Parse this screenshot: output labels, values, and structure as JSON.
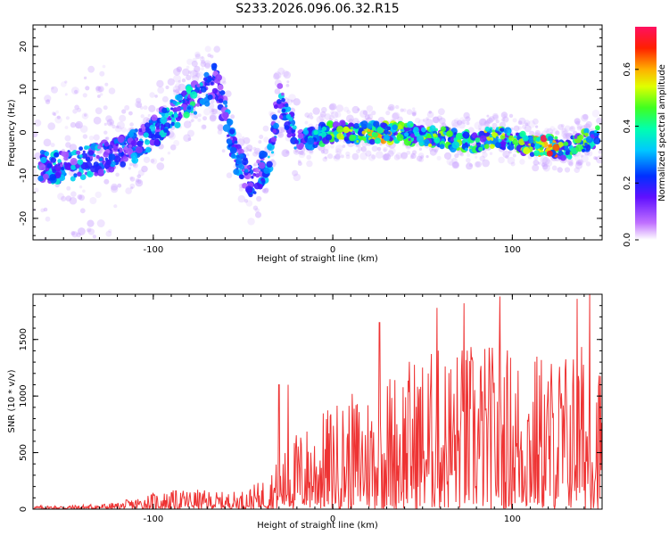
{
  "title": "S233.2026.096.06.32.R15",
  "chart_data": [
    {
      "type": "heatmap",
      "xlabel": "Height of straight line (km)",
      "ylabel": "Frequency (Hz)",
      "xlim": [
        -167,
        150
      ],
      "ylim": [
        -25,
        25
      ],
      "x_ticks": [
        -100,
        0,
        100
      ],
      "y_ticks": [
        -20,
        -10,
        0,
        10,
        20
      ],
      "colorbar": {
        "label": "Normalized spectral amplitude",
        "range": [
          0,
          0.75
        ],
        "ticks": [
          0.0,
          0.2,
          0.4,
          0.6
        ],
        "tick_labels": [
          "0.0",
          "0.2",
          "0.4",
          "0.6"
        ]
      },
      "ridge": [
        {
          "x": -160,
          "y": -8,
          "a": 0.35
        },
        {
          "x": -150,
          "y": -8,
          "a": 0.3
        },
        {
          "x": -140,
          "y": -7,
          "a": 0.3
        },
        {
          "x": -130,
          "y": -6,
          "a": 0.3
        },
        {
          "x": -120,
          "y": -5,
          "a": 0.25
        },
        {
          "x": -110,
          "y": -3,
          "a": 0.3
        },
        {
          "x": -100,
          "y": 0,
          "a": 0.3
        },
        {
          "x": -90,
          "y": 4,
          "a": 0.35
        },
        {
          "x": -80,
          "y": 7,
          "a": 0.4
        },
        {
          "x": -70,
          "y": 10,
          "a": 0.25
        },
        {
          "x": -65,
          "y": 13,
          "a": 0.2
        },
        {
          "x": -55,
          "y": -5,
          "a": 0.3
        },
        {
          "x": -45,
          "y": -12,
          "a": 0.25
        },
        {
          "x": -35,
          "y": -6,
          "a": 0.3
        },
        {
          "x": -30,
          "y": 8,
          "a": 0.3
        },
        {
          "x": -20,
          "y": -2,
          "a": 0.3
        },
        {
          "x": -10,
          "y": -1,
          "a": 0.35
        },
        {
          "x": 0,
          "y": 0,
          "a": 0.45
        },
        {
          "x": 10,
          "y": 0,
          "a": 0.5
        },
        {
          "x": 20,
          "y": 0,
          "a": 0.55
        },
        {
          "x": 30,
          "y": 0,
          "a": 0.55
        },
        {
          "x": 40,
          "y": 0,
          "a": 0.5
        },
        {
          "x": 50,
          "y": -1,
          "a": 0.5
        },
        {
          "x": 60,
          "y": -1,
          "a": 0.45
        },
        {
          "x": 70,
          "y": -2,
          "a": 0.5
        },
        {
          "x": 80,
          "y": -2,
          "a": 0.45
        },
        {
          "x": 90,
          "y": -1,
          "a": 0.55
        },
        {
          "x": 100,
          "y": -2,
          "a": 0.5
        },
        {
          "x": 110,
          "y": -3,
          "a": 0.5
        },
        {
          "x": 120,
          "y": -3,
          "a": 0.7
        },
        {
          "x": 130,
          "y": -4,
          "a": 0.4
        },
        {
          "x": 140,
          "y": -2,
          "a": 0.45
        },
        {
          "x": 148,
          "y": -1,
          "a": 0.4
        }
      ]
    },
    {
      "type": "line",
      "xlabel": "Height of straight line (km)",
      "ylabel": "SNR (10 * v/v)",
      "xlim": [
        -167,
        150
      ],
      "ylim": [
        0,
        1900
      ],
      "x_ticks": [
        -100,
        0,
        100
      ],
      "y_ticks": [
        0,
        500,
        1000,
        1500
      ],
      "color": "#ee3333",
      "envelope": [
        {
          "x": -167,
          "y": 30
        },
        {
          "x": -140,
          "y": 40
        },
        {
          "x": -120,
          "y": 60
        },
        {
          "x": -100,
          "y": 150
        },
        {
          "x": -80,
          "y": 180
        },
        {
          "x": -60,
          "y": 150
        },
        {
          "x": -50,
          "y": 170
        },
        {
          "x": -40,
          "y": 250
        },
        {
          "x": -30,
          "y": 450
        },
        {
          "x": -20,
          "y": 700
        },
        {
          "x": -10,
          "y": 800
        },
        {
          "x": 0,
          "y": 950
        },
        {
          "x": 20,
          "y": 1100
        },
        {
          "x": 40,
          "y": 1350
        },
        {
          "x": 60,
          "y": 1450
        },
        {
          "x": 80,
          "y": 1500
        },
        {
          "x": 100,
          "y": 1450
        },
        {
          "x": 120,
          "y": 1400
        },
        {
          "x": 140,
          "y": 1500
        },
        {
          "x": 150,
          "y": 1300
        }
      ],
      "peaks": [
        {
          "x": -30,
          "y": 1100
        },
        {
          "x": -25,
          "y": 1100
        },
        {
          "x": 26,
          "y": 1650
        },
        {
          "x": 58,
          "y": 1780
        },
        {
          "x": 73,
          "y": 1820
        },
        {
          "x": 93,
          "y": 1880
        },
        {
          "x": 136,
          "y": 1860
        },
        {
          "x": 143,
          "y": 1900
        }
      ]
    }
  ]
}
